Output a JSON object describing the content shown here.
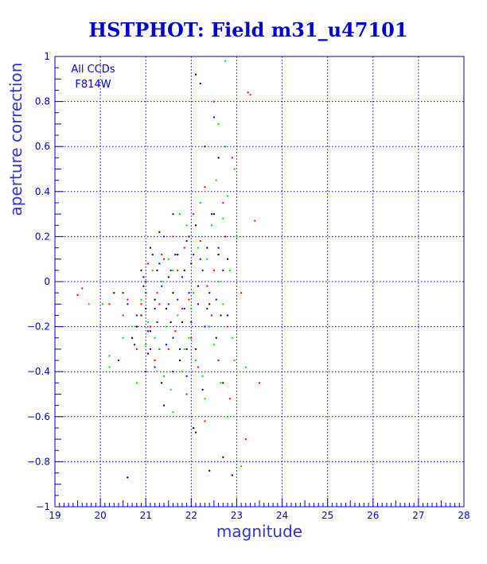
{
  "chart_data": {
    "type": "scatter",
    "title": "HSTPHOT: Field m31_u47101",
    "xlabel": "magnitude",
    "ylabel": "aperture correction",
    "xlim": [
      19,
      28
    ],
    "ylim": [
      -1,
      1
    ],
    "xticks": [
      19,
      20,
      21,
      22,
      23,
      24,
      25,
      26,
      27,
      28
    ],
    "yticks": [
      -1,
      -0.8,
      -0.6,
      -0.4,
      -0.2,
      0,
      0.2,
      0.4,
      0.6,
      0.8,
      1
    ],
    "xtick_labels": [
      "19",
      "20",
      "21",
      "22",
      "23",
      "24",
      "25",
      "26",
      "27",
      "28"
    ],
    "ytick_labels": [
      "−1",
      "−0.8",
      "−0.6",
      "−0.4",
      "−0.2",
      "0",
      "0.2",
      "0.4",
      "0.6",
      "0.8",
      "1"
    ],
    "grid": true,
    "annotations": [
      "All CCDs",
      "F814W"
    ],
    "series_colors": [
      "#000000",
      "#ff0000",
      "#00dd00",
      "#0000ff"
    ],
    "series": [
      {
        "color": "#000000",
        "points": [
          [
            22.1,
            0.92
          ],
          [
            22.2,
            0.88
          ],
          [
            20.6,
            -0.87
          ],
          [
            22.4,
            -0.84
          ],
          [
            22.9,
            -0.86
          ],
          [
            22.1,
            -0.67
          ],
          [
            22.05,
            -0.65
          ],
          [
            22.7,
            -0.78
          ],
          [
            22.6,
            0.55
          ],
          [
            22.3,
            0.6
          ],
          [
            22.5,
            0.3
          ],
          [
            22.6,
            0.12
          ],
          [
            20.9,
            0.05
          ],
          [
            21.1,
            0.15
          ],
          [
            21.3,
            0.22
          ],
          [
            20.3,
            -0.05
          ],
          [
            20.7,
            -0.25
          ],
          [
            21.6,
            -0.4
          ],
          [
            21.4,
            -0.55
          ],
          [
            22.7,
            -0.45
          ],
          [
            21.0,
            -0.12
          ],
          [
            21.2,
            -0.08
          ],
          [
            21.5,
            0.02
          ],
          [
            21.8,
            -0.18
          ],
          [
            22.0,
            0.08
          ],
          [
            21.9,
            -0.3
          ],
          [
            22.3,
            -0.2
          ],
          [
            21.1,
            -0.22
          ],
          [
            20.9,
            -0.15
          ],
          [
            21.7,
            0.12
          ],
          [
            22.1,
            0.25
          ],
          [
            22.4,
            -0.1
          ],
          [
            21.3,
            -0.3
          ],
          [
            21.6,
            -0.05
          ],
          [
            20.8,
            -0.2
          ],
          [
            21.45,
            -0.12
          ],
          [
            22.15,
            -0.02
          ],
          [
            21.85,
            0.05
          ],
          [
            22.55,
            -0.25
          ],
          [
            21.25,
            0.05
          ],
          [
            22.8,
            0.1
          ],
          [
            21.05,
            -0.32
          ],
          [
            21.55,
            -0.18
          ],
          [
            22.35,
            0.15
          ],
          [
            21.75,
            -0.35
          ],
          [
            22.25,
            -0.48
          ],
          [
            21.35,
            -0.45
          ],
          [
            22.65,
            -0.15
          ],
          [
            21.95,
            0.2
          ],
          [
            20.95,
            -0.02
          ]
        ]
      },
      {
        "color": "#ff0000",
        "points": [
          [
            23.25,
            0.84
          ],
          [
            23.3,
            0.83
          ],
          [
            22.5,
            0.8
          ],
          [
            22.9,
            0.55
          ],
          [
            22.7,
            0.35
          ],
          [
            23.4,
            0.27
          ],
          [
            22.3,
            0.42
          ],
          [
            19.6,
            -0.03
          ],
          [
            19.5,
            -0.06
          ],
          [
            20.2,
            -0.1
          ],
          [
            20.5,
            -0.15
          ],
          [
            21.0,
            0.0
          ],
          [
            21.3,
            -0.1
          ],
          [
            21.7,
            0.05
          ],
          [
            22.0,
            -0.25
          ],
          [
            22.2,
            0.18
          ],
          [
            21.5,
            -0.3
          ],
          [
            21.2,
            -0.35
          ],
          [
            22.8,
            -0.2
          ],
          [
            23.5,
            -0.45
          ],
          [
            23.2,
            -0.7
          ],
          [
            22.3,
            -0.62
          ],
          [
            21.9,
            -0.5
          ],
          [
            20.8,
            -0.3
          ],
          [
            21.4,
            0.1
          ],
          [
            22.5,
            0.05
          ],
          [
            21.8,
            -0.12
          ],
          [
            21.1,
            -0.2
          ],
          [
            22.6,
            -0.35
          ],
          [
            21.6,
            0.2
          ],
          [
            22.05,
            0.3
          ],
          [
            20.6,
            -0.08
          ],
          [
            21.25,
            -0.05
          ],
          [
            21.95,
            -0.08
          ],
          [
            22.45,
            -0.15
          ],
          [
            22.75,
            0.2
          ],
          [
            21.65,
            -0.22
          ],
          [
            21.35,
            0.12
          ],
          [
            20.9,
            -0.1
          ],
          [
            22.15,
            -0.38
          ],
          [
            23.1,
            -0.05
          ],
          [
            22.85,
            -0.52
          ],
          [
            21.05,
            0.08
          ],
          [
            21.85,
            0.15
          ],
          [
            22.35,
            -0.02
          ]
        ]
      },
      {
        "color": "#00dd00",
        "points": [
          [
            22.75,
            0.98
          ],
          [
            22.6,
            0.7
          ],
          [
            22.75,
            0.6
          ],
          [
            22.95,
            0.5
          ],
          [
            22.8,
            0.38
          ],
          [
            23.0,
            0.2
          ],
          [
            21.3,
            -0.3
          ],
          [
            20.2,
            -0.33
          ],
          [
            20.2,
            -0.38
          ],
          [
            19.75,
            -0.1
          ],
          [
            20.05,
            -0.1
          ],
          [
            21.6,
            -0.58
          ],
          [
            22.3,
            -0.52
          ],
          [
            22.8,
            -0.6
          ],
          [
            23.1,
            -0.82
          ],
          [
            23.2,
            -0.38
          ],
          [
            22.0,
            -0.12
          ],
          [
            21.5,
            0.1
          ],
          [
            21.9,
            0.25
          ],
          [
            22.1,
            -0.35
          ],
          [
            22.4,
            -0.2
          ],
          [
            21.2,
            -0.25
          ],
          [
            20.9,
            -0.08
          ],
          [
            21.7,
            -0.15
          ],
          [
            22.6,
            0.0
          ],
          [
            22.2,
            0.35
          ],
          [
            21.8,
            -0.4
          ],
          [
            21.4,
            -0.42
          ],
          [
            22.5,
            -0.28
          ],
          [
            21.0,
            -0.28
          ],
          [
            22.7,
            -0.1
          ],
          [
            21.6,
            0.05
          ],
          [
            22.9,
            -0.25
          ],
          [
            20.7,
            -0.2
          ],
          [
            22.35,
            0.1
          ],
          [
            22.55,
            0.45
          ],
          [
            21.15,
            0.05
          ],
          [
            21.45,
            -0.2
          ],
          [
            21.75,
            0.3
          ],
          [
            22.05,
            -0.05
          ],
          [
            22.25,
            -0.42
          ],
          [
            22.65,
            -0.45
          ],
          [
            21.25,
            -0.4
          ],
          [
            21.95,
            -0.25
          ],
          [
            22.45,
            0.25
          ],
          [
            22.85,
            0.05
          ],
          [
            21.55,
            -0.48
          ],
          [
            21.05,
            -0.18
          ],
          [
            22.15,
            0.15
          ],
          [
            20.5,
            -0.25
          ],
          [
            21.35,
            0.0
          ],
          [
            21.85,
            -0.3
          ],
          [
            22.95,
            -0.35
          ],
          [
            22.7,
            0.28
          ],
          [
            20.8,
            -0.45
          ]
        ]
      },
      {
        "color": "#0000ff",
        "points": [
          [
            22.3,
            -0.2
          ],
          [
            20.4,
            -0.35
          ],
          [
            22.5,
            0.73
          ],
          [
            21.5,
            -0.1
          ],
          [
            21.2,
            -0.12
          ],
          [
            21.0,
            -0.05
          ],
          [
            21.8,
            0.02
          ],
          [
            22.0,
            -0.18
          ],
          [
            21.3,
            0.08
          ],
          [
            21.6,
            -0.25
          ],
          [
            22.2,
            0.1
          ],
          [
            20.8,
            -0.15
          ],
          [
            21.9,
            0.18
          ],
          [
            22.4,
            -0.05
          ],
          [
            21.1,
            -0.3
          ],
          [
            21.7,
            -0.08
          ],
          [
            22.6,
            0.15
          ],
          [
            20.6,
            -0.1
          ],
          [
            21.4,
            0.2
          ],
          [
            22.1,
            -0.3
          ],
          [
            21.25,
            -0.18
          ],
          [
            21.55,
            0.05
          ],
          [
            21.85,
            -0.12
          ],
          [
            22.15,
            -0.1
          ],
          [
            21.05,
            -0.22
          ],
          [
            21.35,
            -0.02
          ],
          [
            21.65,
            0.12
          ],
          [
            21.95,
            -0.05
          ],
          [
            22.25,
            0.05
          ],
          [
            20.95,
            0.02
          ],
          [
            21.15,
            0.12
          ],
          [
            21.45,
            -0.28
          ],
          [
            21.75,
            -0.3
          ],
          [
            22.05,
            0.12
          ],
          [
            22.35,
            -0.12
          ],
          [
            20.75,
            -0.28
          ],
          [
            22.55,
            -0.08
          ],
          [
            21.2,
            -0.38
          ],
          [
            22.45,
            0.3
          ],
          [
            21.6,
            0.3
          ],
          [
            21.9,
            -0.42
          ],
          [
            22.8,
            -0.15
          ],
          [
            20.5,
            -0.05
          ],
          [
            21.0,
            -0.4
          ],
          [
            22.7,
            0.05
          ]
        ]
      }
    ]
  }
}
